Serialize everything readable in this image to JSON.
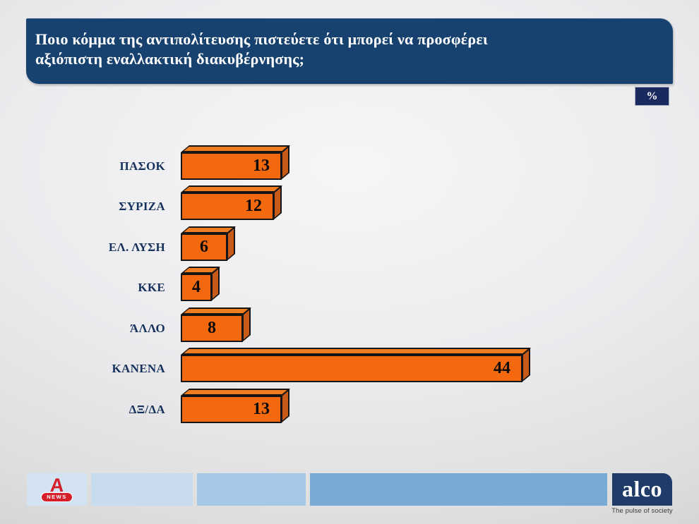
{
  "slide": {
    "title_lines": [
      "Ποιο κόμμα της αντιπολίτευσης πιστεύετε ότι μπορεί να προσφέρει",
      "αξιόπιστη εναλλακτική διακυβέρνησης;"
    ],
    "unit_badge": "%"
  },
  "chart_data": {
    "type": "bar",
    "orientation": "horizontal",
    "title": "Ποιο κόμμα της αντιπολίτευσης πιστεύετε ότι μπορεί να προσφέρει αξιόπιστη εναλλακτική διακυβέρνησης;",
    "unit": "%",
    "categories": [
      "ΠΑΣΟΚ",
      "ΣΥΡΙΖΑ",
      "ΕΛ. ΛΥΣΗ",
      "ΚΚΕ",
      "ΆΛΛΟ",
      "ΚΑΝΕΝΑ",
      "ΔΞ/ΔΑ"
    ],
    "values": [
      13,
      12,
      6,
      4,
      8,
      44,
      13
    ],
    "xlim": [
      0,
      50
    ],
    "grid": false,
    "legend": false,
    "value_labels": "inside-end",
    "style": "3d-box-bars"
  },
  "colors": {
    "header_bg": "#17426f",
    "header_bg_dark": "#123а5e",
    "badge_bg": "#1a2a5e",
    "bar_front": "#f4690e",
    "bar_top": "#f07d20",
    "bar_side": "#c65a16",
    "bar_outline": "#151515",
    "category_label": "#16325c",
    "value_label": "#0a0a0a",
    "footer_block_1": "#d3e3f1",
    "footer_block_2": "#c8dcee",
    "footer_block_3": "#a4c8e6",
    "footer_block_4": "#79aad4",
    "alco_bg": "#1f3c69",
    "alpha_red": "#d5202c"
  },
  "footer": {
    "alpha_news": {
      "letter": "A",
      "badge": "NEWS"
    },
    "alco": {
      "name": "alco",
      "tagline": "The pulse of society"
    }
  }
}
